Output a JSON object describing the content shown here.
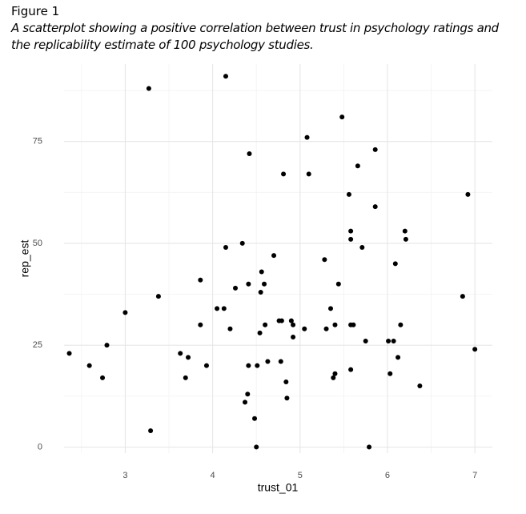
{
  "figure_label": "Figure 1",
  "caption": "A scatterplot showing a positive correlation between trust in psychology ratings and the replicability estimate of 100 psychology studies.",
  "chart_data": {
    "type": "scatter",
    "x_label": "trust_01",
    "y_label": "rep_est",
    "xlim": [
      2.3,
      7.2
    ],
    "ylim": [
      -1.5,
      94
    ],
    "xticks": [
      3,
      4,
      5,
      6,
      7
    ],
    "yticks": [
      0,
      25,
      50,
      75
    ],
    "xminorticks": [
      2.5,
      3.5,
      4.5,
      5.5,
      6.5
    ],
    "yminorticks": [
      12.5,
      37.5,
      62.5,
      87.5
    ],
    "grid": true,
    "color": "#000000",
    "series": [
      {
        "x": [
          2.36,
          2.59,
          2.74,
          2.79,
          3.0,
          3.27,
          3.29,
          3.38,
          3.63,
          3.69,
          3.72,
          3.86,
          3.86,
          3.93,
          4.05,
          4.13,
          4.15,
          4.15,
          4.2,
          4.26,
          4.34,
          4.37,
          4.4,
          4.41,
          4.41,
          4.42,
          4.48,
          4.5,
          4.51,
          4.54,
          4.55,
          4.56,
          4.59,
          4.6,
          4.63,
          4.7,
          4.76,
          4.79,
          4.78,
          4.81,
          4.84,
          4.85,
          4.9,
          4.92,
          4.92,
          5.05,
          5.08,
          5.1,
          5.28,
          5.3,
          5.35,
          5.38,
          5.4,
          5.4,
          5.44,
          5.48,
          5.56,
          5.58,
          5.58,
          5.58,
          5.58,
          5.61,
          5.66,
          5.71,
          5.75,
          5.79,
          5.86,
          5.86,
          6.01,
          6.03,
          6.07,
          6.09,
          6.12,
          6.15,
          6.2,
          6.21,
          6.37,
          6.86,
          6.92,
          7.0
        ],
        "values": [
          23,
          20,
          17,
          25,
          33,
          88,
          4,
          37,
          23,
          17,
          22,
          41,
          30,
          20,
          34,
          34,
          91,
          49,
          29,
          39,
          50,
          11,
          13,
          20,
          40,
          72,
          7,
          0,
          20,
          28,
          38,
          43,
          40,
          30,
          21,
          47,
          31,
          31,
          21,
          67,
          16,
          12,
          31,
          30,
          27,
          29,
          76,
          67,
          46,
          29,
          34,
          17,
          18,
          30,
          40,
          81,
          62,
          53,
          51,
          30,
          19,
          30,
          69,
          49,
          26,
          0,
          73,
          59,
          26,
          18,
          26,
          45,
          22,
          30,
          53,
          51,
          15,
          37,
          62,
          24
        ]
      }
    ]
  }
}
